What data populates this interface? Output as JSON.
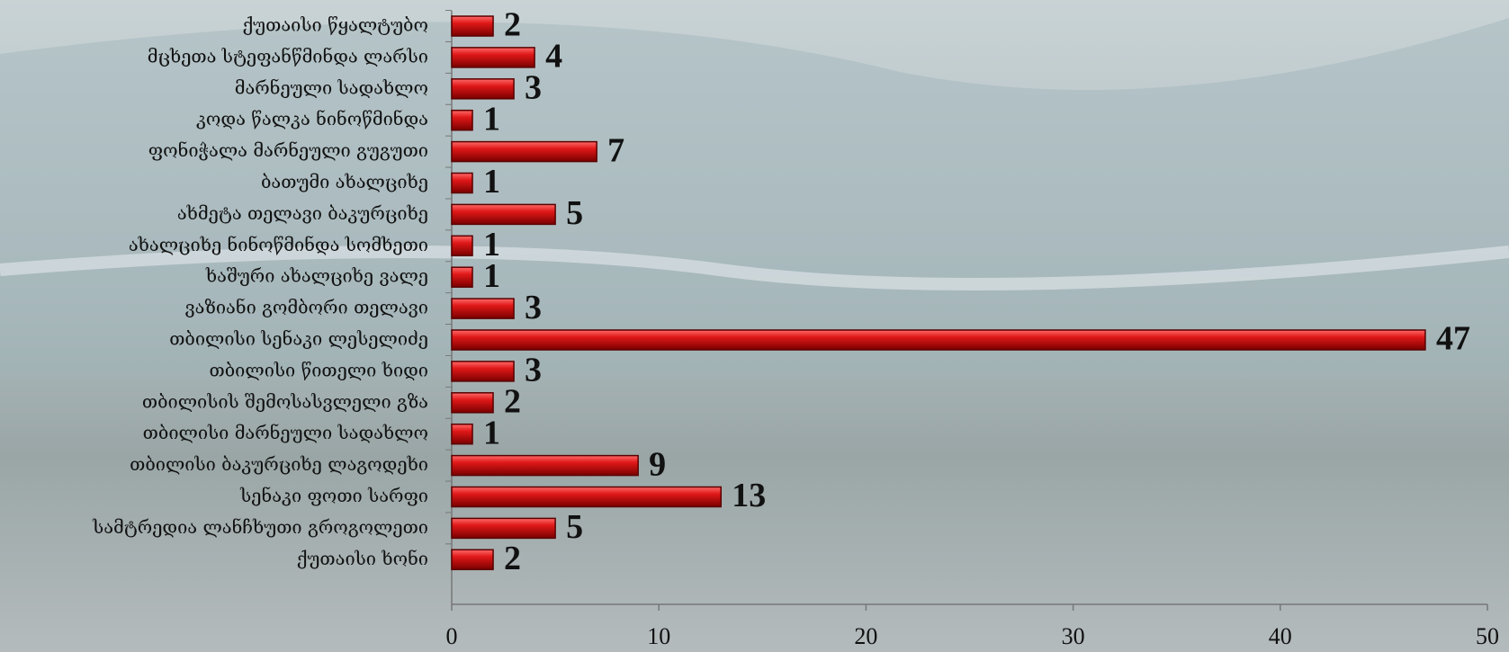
{
  "chart_data": {
    "type": "bar",
    "orientation": "horizontal",
    "categories": [
      "ქუთაისი წყალტუბო",
      "მცხეთა სტეფანწმინდა ლარსი",
      "მარნეული სადახლო",
      "კოდა წალკა ნინოწმინდა",
      "ფონიჭალა მარნეული გუგუთი",
      "ბათუმი ახალციხე",
      "ახმეტა თელავი ბაკურციხე",
      "ახალციხე ნინოწმინდა სომხეთი",
      "ხაშური ახალციხე ვალე",
      "ვაზიანი გომბორი თელავი",
      "თბილისი სენაკი ლესელიძე",
      "თბილისი წითელი ხიდი",
      "თბილისის შემოსასვლელი გზა",
      "თბილისი მარნეული სადახლო",
      "თბილისი ბაკურციხე ლაგოდეხი",
      "სენაკი ფოთი სარფი",
      "სამტრედია ლანჩხუთი გროგოლეთი",
      "ქუთაისი ხონი"
    ],
    "values": [
      2,
      4,
      3,
      1,
      7,
      1,
      5,
      1,
      1,
      3,
      47,
      3,
      2,
      1,
      9,
      13,
      5,
      2
    ],
    "color": "#d01010",
    "xlim": [
      0,
      50
    ],
    "xticks": [
      0,
      10,
      20,
      30,
      40,
      50
    ],
    "grid": false
  }
}
